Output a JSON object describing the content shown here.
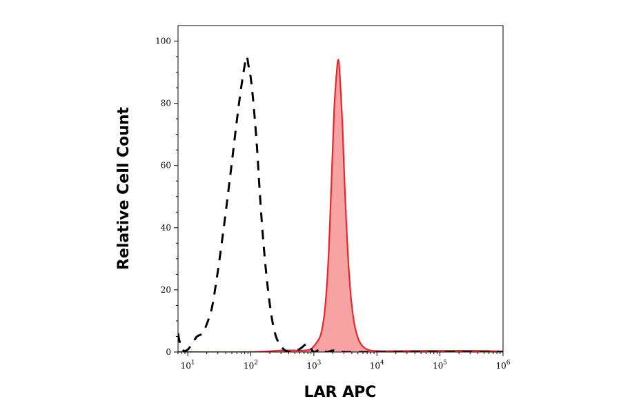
{
  "chart_data": {
    "type": "area",
    "title": "",
    "xlabel": "LAR APC",
    "ylabel": "Relative Cell Count",
    "x_scale": "log",
    "xlim": [
      7,
      1000000
    ],
    "ylim": [
      0,
      105
    ],
    "grid": false,
    "x_ticks": [
      {
        "value": 10,
        "base": "10",
        "exp": "1"
      },
      {
        "value": 100,
        "base": "10",
        "exp": "2"
      },
      {
        "value": 1000,
        "base": "10",
        "exp": "3"
      },
      {
        "value": 10000,
        "base": "10",
        "exp": "4"
      },
      {
        "value": 100000,
        "base": "10",
        "exp": "5"
      },
      {
        "value": 1000000,
        "base": "10",
        "exp": "6"
      }
    ],
    "y_ticks": [
      0,
      20,
      40,
      60,
      80,
      100
    ],
    "series": [
      {
        "style": "dashed",
        "color": "#000000",
        "points": [
          [
            7,
            6
          ],
          [
            7.5,
            3
          ],
          [
            8.5,
            0.5
          ],
          [
            10,
            0.8
          ],
          [
            12,
            3
          ],
          [
            14,
            5
          ],
          [
            17,
            6
          ],
          [
            20,
            9
          ],
          [
            24,
            14
          ],
          [
            28,
            22
          ],
          [
            33,
            32
          ],
          [
            40,
            45
          ],
          [
            48,
            58
          ],
          [
            58,
            72
          ],
          [
            68,
            83
          ],
          [
            78,
            91
          ],
          [
            86,
            95
          ],
          [
            92,
            92
          ],
          [
            100,
            88
          ],
          [
            110,
            80
          ],
          [
            125,
            66
          ],
          [
            140,
            50
          ],
          [
            160,
            34
          ],
          [
            185,
            21
          ],
          [
            215,
            11
          ],
          [
            250,
            5
          ],
          [
            300,
            2
          ],
          [
            350,
            0.5
          ],
          [
            450,
            0
          ],
          [
            600,
            1
          ],
          [
            750,
            2.5
          ],
          [
            850,
            2
          ],
          [
            1000,
            0
          ],
          [
            1300,
            1
          ],
          [
            1600,
            0
          ],
          [
            2000,
            0.5
          ],
          [
            3000,
            0
          ],
          [
            10000,
            0
          ],
          [
            1000000,
            0
          ]
        ]
      },
      {
        "style": "filled",
        "color": "#e8262d",
        "fill": "#f7a3a3",
        "points": [
          [
            7,
            0
          ],
          [
            100,
            0
          ],
          [
            300,
            0.5
          ],
          [
            500,
            0.5
          ],
          [
            700,
            0.5
          ],
          [
            900,
            1
          ],
          [
            1100,
            3
          ],
          [
            1300,
            6
          ],
          [
            1500,
            14
          ],
          [
            1700,
            30
          ],
          [
            1900,
            55
          ],
          [
            2100,
            78
          ],
          [
            2300,
            90
          ],
          [
            2450,
            94
          ],
          [
            2600,
            88
          ],
          [
            2850,
            72
          ],
          [
            3100,
            52
          ],
          [
            3450,
            32
          ],
          [
            3850,
            18
          ],
          [
            4300,
            10
          ],
          [
            4900,
            5
          ],
          [
            5600,
            2.5
          ],
          [
            6500,
            1.2
          ],
          [
            8000,
            0.5
          ],
          [
            11000,
            0.3
          ],
          [
            20000,
            0.3
          ],
          [
            60000,
            0.4
          ],
          [
            150000,
            0.4
          ],
          [
            400000,
            0.4
          ],
          [
            1000000,
            0.2
          ]
        ]
      }
    ]
  }
}
